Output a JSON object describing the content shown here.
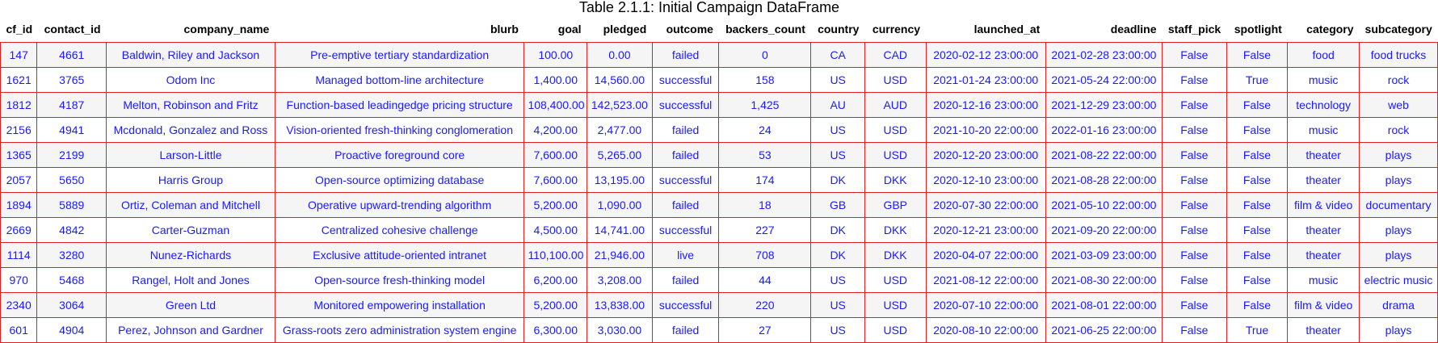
{
  "caption": "Table 2.1.1: Initial Campaign DataFrame",
  "columns": [
    "cf_id",
    "contact_id",
    "company_name",
    "blurb",
    "goal",
    "pledged",
    "outcome",
    "backers_count",
    "country",
    "currency",
    "launched_at",
    "deadline",
    "staff_pick",
    "spotlight",
    "category",
    "subcategory"
  ],
  "rows": [
    [
      "147",
      "4661",
      "Baldwin, Riley and Jackson",
      "Pre-emptive tertiary standardization",
      "100.00",
      "0.00",
      "failed",
      "0",
      "CA",
      "CAD",
      "2020-02-12 23:00:00",
      "2021-02-28 23:00:00",
      "False",
      "False",
      "food",
      "food trucks"
    ],
    [
      "1621",
      "3765",
      "Odom Inc",
      "Managed bottom-line architecture",
      "1,400.00",
      "14,560.00",
      "successful",
      "158",
      "US",
      "USD",
      "2021-01-24 23:00:00",
      "2021-05-24 22:00:00",
      "False",
      "True",
      "music",
      "rock"
    ],
    [
      "1812",
      "4187",
      "Melton, Robinson and Fritz",
      "Function-based leadingedge pricing structure",
      "108,400.00",
      "142,523.00",
      "successful",
      "1,425",
      "AU",
      "AUD",
      "2020-12-16 23:00:00",
      "2021-12-29 23:00:00",
      "False",
      "False",
      "technology",
      "web"
    ],
    [
      "2156",
      "4941",
      "Mcdonald, Gonzalez and Ross",
      "Vision-oriented fresh-thinking conglomeration",
      "4,200.00",
      "2,477.00",
      "failed",
      "24",
      "US",
      "USD",
      "2021-10-20 22:00:00",
      "2022-01-16 23:00:00",
      "False",
      "False",
      "music",
      "rock"
    ],
    [
      "1365",
      "2199",
      "Larson-Little",
      "Proactive foreground core",
      "7,600.00",
      "5,265.00",
      "failed",
      "53",
      "US",
      "USD",
      "2020-12-20 23:00:00",
      "2021-08-22 22:00:00",
      "False",
      "False",
      "theater",
      "plays"
    ],
    [
      "2057",
      "5650",
      "Harris Group",
      "Open-source optimizing database",
      "7,600.00",
      "13,195.00",
      "successful",
      "174",
      "DK",
      "DKK",
      "2020-12-10 23:00:00",
      "2021-08-28 22:00:00",
      "False",
      "False",
      "theater",
      "plays"
    ],
    [
      "1894",
      "5889",
      "Ortiz, Coleman and Mitchell",
      "Operative upward-trending algorithm",
      "5,200.00",
      "1,090.00",
      "failed",
      "18",
      "GB",
      "GBP",
      "2020-07-30 22:00:00",
      "2021-05-10 22:00:00",
      "False",
      "False",
      "film & video",
      "documentary"
    ],
    [
      "2669",
      "4842",
      "Carter-Guzman",
      "Centralized cohesive challenge",
      "4,500.00",
      "14,741.00",
      "successful",
      "227",
      "DK",
      "DKK",
      "2020-12-21 23:00:00",
      "2021-09-20 22:00:00",
      "False",
      "False",
      "theater",
      "plays"
    ],
    [
      "1114",
      "3280",
      "Nunez-Richards",
      "Exclusive attitude-oriented intranet",
      "110,100.00",
      "21,946.00",
      "live",
      "708",
      "DK",
      "DKK",
      "2020-04-07 22:00:00",
      "2021-03-09 23:00:00",
      "False",
      "False",
      "theater",
      "plays"
    ],
    [
      "970",
      "5468",
      "Rangel, Holt and Jones",
      "Open-source fresh-thinking model",
      "6,200.00",
      "3,208.00",
      "failed",
      "44",
      "US",
      "USD",
      "2021-08-12 22:00:00",
      "2021-08-30 22:00:00",
      "False",
      "False",
      "music",
      "electric music"
    ],
    [
      "2340",
      "3064",
      "Green Ltd",
      "Monitored empowering installation",
      "5,200.00",
      "13,838.00",
      "successful",
      "220",
      "US",
      "USD",
      "2020-07-10 22:00:00",
      "2021-08-01 22:00:00",
      "False",
      "False",
      "film & video",
      "drama"
    ],
    [
      "601",
      "4904",
      "Perez, Johnson and Gardner",
      "Grass-roots zero administration system engine",
      "6,300.00",
      "3,030.00",
      "failed",
      "27",
      "US",
      "USD",
      "2020-08-10 22:00:00",
      "2021-06-25 22:00:00",
      "False",
      "True",
      "theater",
      "plays"
    ]
  ],
  "colors": {
    "cell_text": "#1a1aff",
    "cell_border": "#e02020",
    "header_text": "#000000",
    "row_odd_bg": "#f5f5f5",
    "row_even_bg": "#ffffff"
  }
}
